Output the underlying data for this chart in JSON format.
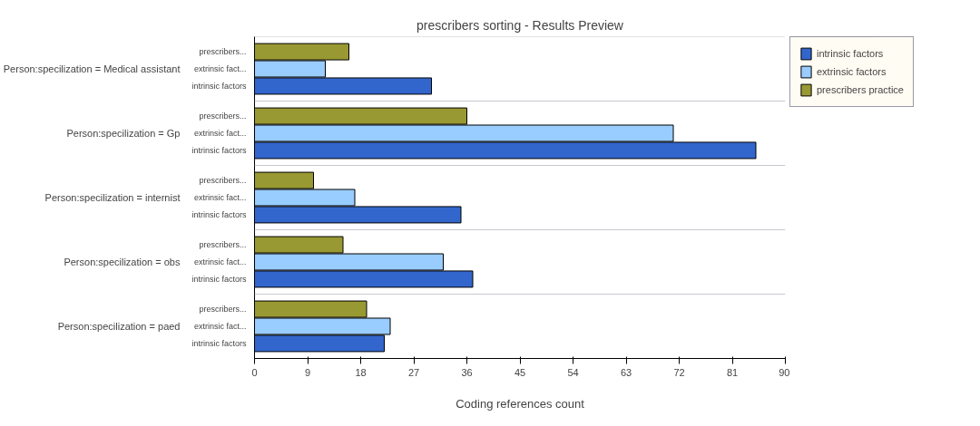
{
  "chart_data": {
    "type": "bar",
    "orientation": "horizontal",
    "title": "prescribers sorting - Results Preview",
    "xlabel": "Coding references count",
    "categories": [
      "Person:specilization = Medical assistant",
      "Person:specilization = Gp",
      "Person:specilization = internist",
      "Person:specilization = obs",
      "Person:specilization = paed"
    ],
    "series": [
      {
        "name": "intrinsic factors",
        "color": "#3366cc",
        "values": [
          30,
          85,
          35,
          37,
          22
        ]
      },
      {
        "name": "extrinsic factors",
        "color": "#99ccff",
        "values": [
          12,
          71,
          17,
          32,
          23
        ]
      },
      {
        "name": "prescribers practice",
        "color": "#999933",
        "values": [
          16,
          36,
          10,
          15,
          19
        ]
      }
    ],
    "annotations": [
      "intrinsic factors",
      "extrinsic fact...",
      "prescribers..."
    ],
    "xlim": [
      0,
      90
    ],
    "xticks": [
      0,
      9,
      18,
      27,
      36,
      45,
      54,
      63,
      72,
      81,
      90
    ],
    "grid": "y",
    "legend": "right"
  }
}
